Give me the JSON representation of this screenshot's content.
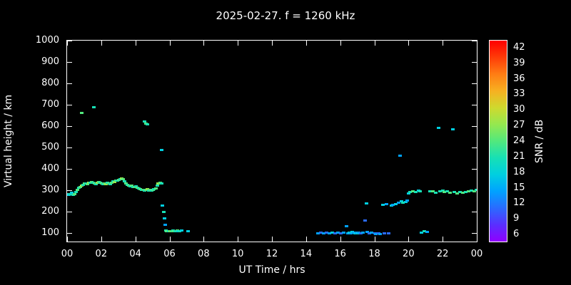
{
  "chart_data": {
    "type": "scatter",
    "title": "2025-02-27. f = 1260 kHz",
    "xlabel": "UT Time / hrs",
    "ylabel": "Virtual height / km",
    "xlim": [
      0,
      24
    ],
    "ylim": [
      100,
      1000
    ],
    "grid": false,
    "x_tick_values": [
      0,
      2,
      4,
      6,
      8,
      10,
      12,
      14,
      16,
      18,
      20,
      22,
      24
    ],
    "x_tick_labels": [
      "00",
      "02",
      "04",
      "06",
      "08",
      "10",
      "12",
      "14",
      "16",
      "18",
      "20",
      "22",
      "00"
    ],
    "y_tick_values": [
      100,
      200,
      300,
      400,
      500,
      600,
      700,
      800,
      900,
      1000
    ],
    "y_tick_labels": [
      "100",
      "200",
      "300",
      "400",
      "500",
      "600",
      "700",
      "800",
      "900",
      "1000"
    ],
    "colorbar": {
      "label": "SNR / dB",
      "tick_labels": [
        "42",
        "39",
        "36",
        "33",
        "30",
        "27",
        "24",
        "21",
        "18",
        "15",
        "12",
        "9",
        "6"
      ],
      "stops": {
        "6": "#9000ff",
        "9": "#5a2fff",
        "12": "#2a6bff",
        "15": "#00a2ff",
        "18": "#00cfe0",
        "21": "#17e0b5",
        "24": "#52e87d",
        "27": "#95e84f",
        "30": "#cfd92e",
        "33": "#f7b021",
        "36": "#ff7d14",
        "39": "#ff3c08",
        "42": "#ff0000"
      }
    },
    "points_format": [
      "ut_hours",
      "virtual_height_km",
      "snr_db"
    ],
    "points": [
      [
        0.0,
        285,
        21
      ],
      [
        0.08,
        280,
        18
      ],
      [
        0.17,
        285,
        21
      ],
      [
        0.25,
        290,
        18
      ],
      [
        0.33,
        280,
        21
      ],
      [
        0.42,
        285,
        24
      ],
      [
        0.5,
        295,
        21
      ],
      [
        0.58,
        305,
        24
      ],
      [
        0.67,
        312,
        21
      ],
      [
        0.75,
        318,
        24
      ],
      [
        0.83,
        322,
        27
      ],
      [
        0.92,
        328,
        21
      ],
      [
        1.0,
        332,
        24
      ],
      [
        1.08,
        335,
        21
      ],
      [
        1.17,
        330,
        24
      ],
      [
        1.25,
        336,
        27
      ],
      [
        1.33,
        338,
        21
      ],
      [
        1.42,
        340,
        24
      ],
      [
        1.5,
        338,
        21
      ],
      [
        1.58,
        334,
        24
      ],
      [
        1.67,
        330,
        21
      ],
      [
        1.75,
        336,
        27
      ],
      [
        1.83,
        340,
        24
      ],
      [
        1.92,
        336,
        21
      ],
      [
        2.0,
        332,
        24
      ],
      [
        2.08,
        330,
        21
      ],
      [
        2.17,
        334,
        24
      ],
      [
        2.25,
        330,
        27
      ],
      [
        2.33,
        336,
        21
      ],
      [
        2.42,
        334,
        24
      ],
      [
        2.5,
        330,
        21
      ],
      [
        2.58,
        338,
        24
      ],
      [
        2.67,
        344,
        21
      ],
      [
        2.75,
        340,
        27
      ],
      [
        2.83,
        346,
        24
      ],
      [
        2.92,
        348,
        21
      ],
      [
        3.0,
        350,
        24
      ],
      [
        3.08,
        354,
        21
      ],
      [
        3.17,
        356,
        27
      ],
      [
        3.25,
        352,
        24
      ],
      [
        3.33,
        344,
        21
      ],
      [
        3.42,
        334,
        24
      ],
      [
        3.5,
        328,
        21
      ],
      [
        3.58,
        324,
        24
      ],
      [
        3.67,
        320,
        21
      ],
      [
        3.75,
        322,
        24
      ],
      [
        3.83,
        316,
        21
      ],
      [
        3.92,
        318,
        24
      ],
      [
        4.0,
        320,
        21
      ],
      [
        4.08,
        314,
        24
      ],
      [
        4.17,
        310,
        21
      ],
      [
        4.25,
        306,
        24
      ],
      [
        4.33,
        302,
        21
      ],
      [
        4.42,
        304,
        24
      ],
      [
        4.5,
        300,
        21
      ],
      [
        4.58,
        304,
        24
      ],
      [
        4.67,
        306,
        27
      ],
      [
        4.75,
        300,
        21
      ],
      [
        4.83,
        304,
        24
      ],
      [
        4.92,
        300,
        21
      ],
      [
        5.0,
        302,
        24
      ],
      [
        5.08,
        306,
        21
      ],
      [
        5.17,
        310,
        24
      ],
      [
        5.25,
        322,
        21
      ],
      [
        5.33,
        334,
        27
      ],
      [
        5.42,
        338,
        24
      ],
      [
        5.5,
        335,
        21
      ],
      [
        0.85,
        662,
        24
      ],
      [
        1.55,
        690,
        21
      ],
      [
        4.5,
        622,
        21
      ],
      [
        4.58,
        615,
        24
      ],
      [
        4.67,
        610,
        21
      ],
      [
        5.5,
        490,
        18
      ],
      [
        5.58,
        230,
        18
      ],
      [
        5.63,
        200,
        21
      ],
      [
        5.68,
        170,
        18
      ],
      [
        5.72,
        140,
        15
      ],
      [
        5.75,
        112,
        21
      ],
      [
        5.83,
        110,
        24
      ],
      [
        5.92,
        110,
        21
      ],
      [
        6.0,
        110,
        27
      ],
      [
        6.08,
        110,
        24
      ],
      [
        6.17,
        112,
        21
      ],
      [
        6.25,
        110,
        24
      ],
      [
        6.33,
        110,
        21
      ],
      [
        6.42,
        112,
        24
      ],
      [
        6.5,
        110,
        18
      ],
      [
        6.58,
        110,
        21
      ],
      [
        6.67,
        112,
        18
      ],
      [
        7.08,
        110,
        18
      ],
      [
        14.67,
        100,
        15
      ],
      [
        14.83,
        102,
        12
      ],
      [
        15.0,
        100,
        15
      ],
      [
        15.17,
        104,
        12
      ],
      [
        15.33,
        100,
        15
      ],
      [
        15.5,
        102,
        18
      ],
      [
        15.67,
        100,
        12
      ],
      [
        15.83,
        102,
        15
      ],
      [
        16.0,
        100,
        12
      ],
      [
        16.17,
        102,
        15
      ],
      [
        16.33,
        135,
        15
      ],
      [
        16.42,
        100,
        15
      ],
      [
        16.5,
        104,
        18
      ],
      [
        16.58,
        100,
        15
      ],
      [
        16.67,
        108,
        18
      ],
      [
        16.75,
        102,
        15
      ],
      [
        16.83,
        100,
        18
      ],
      [
        16.92,
        104,
        15
      ],
      [
        17.0,
        100,
        18
      ],
      [
        17.08,
        102,
        15
      ],
      [
        17.17,
        100,
        12
      ],
      [
        17.33,
        102,
        15
      ],
      [
        17.42,
        160,
        12
      ],
      [
        17.5,
        240,
        18
      ],
      [
        17.58,
        106,
        15
      ],
      [
        17.67,
        100,
        12
      ],
      [
        17.83,
        102,
        15
      ],
      [
        18.0,
        100,
        12
      ],
      [
        18.08,
        96,
        15
      ],
      [
        18.25,
        100,
        12
      ],
      [
        18.33,
        98,
        15
      ],
      [
        18.5,
        232,
        18
      ],
      [
        18.58,
        100,
        12
      ],
      [
        18.67,
        236,
        15
      ],
      [
        18.83,
        100,
        12
      ],
      [
        19.0,
        230,
        18
      ],
      [
        19.08,
        234,
        15
      ],
      [
        19.25,
        238,
        18
      ],
      [
        19.42,
        242,
        15
      ],
      [
        19.5,
        462,
        15
      ],
      [
        19.58,
        250,
        18
      ],
      [
        19.67,
        242,
        21
      ],
      [
        19.83,
        246,
        18
      ],
      [
        19.92,
        252,
        15
      ],
      [
        20.0,
        288,
        18
      ],
      [
        20.08,
        292,
        21
      ],
      [
        20.25,
        298,
        24
      ],
      [
        20.42,
        294,
        21
      ],
      [
        20.58,
        300,
        18
      ],
      [
        20.67,
        296,
        21
      ],
      [
        20.75,
        104,
        18
      ],
      [
        20.92,
        110,
        21
      ],
      [
        21.08,
        106,
        15
      ],
      [
        21.25,
        298,
        21
      ],
      [
        21.42,
        296,
        24
      ],
      [
        21.58,
        290,
        21
      ],
      [
        21.75,
        592,
        18
      ],
      [
        21.83,
        296,
        21
      ],
      [
        22.0,
        300,
        21
      ],
      [
        22.08,
        292,
        24
      ],
      [
        22.25,
        296,
        21
      ],
      [
        22.42,
        290,
        24
      ],
      [
        22.58,
        586,
        18
      ],
      [
        22.67,
        292,
        21
      ],
      [
        22.83,
        288,
        24
      ],
      [
        23.0,
        294,
        21
      ],
      [
        23.17,
        290,
        24
      ],
      [
        23.33,
        294,
        21
      ],
      [
        23.5,
        296,
        24
      ],
      [
        23.67,
        300,
        21
      ],
      [
        23.83,
        298,
        24
      ],
      [
        23.95,
        304,
        21
      ]
    ]
  }
}
